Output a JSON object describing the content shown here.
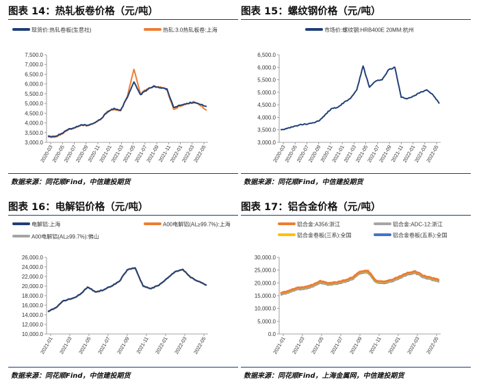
{
  "panels": [
    {
      "title": "图表 14：热轧板卷价格（元/吨）",
      "source": "数据来源：同花顺Find，中信建投期货",
      "chart_data": {
        "type": "line",
        "title": "热轧板卷价格（元/吨）",
        "x_ticks": [
          "2020-03",
          "2020-05",
          "2020-07",
          "2020-09",
          "2020-11",
          "2021-01",
          "2021-03",
          "2021-05",
          "2021-07",
          "2021-09",
          "2021-11",
          "2022-01",
          "2022-03",
          "2022-05"
        ],
        "ylim": [
          3000,
          7500
        ],
        "y_ticks": [
          "3,000.0",
          "3,500.0",
          "4,000.0",
          "4,500.0",
          "5,000.0",
          "5,500.0",
          "6,000.0",
          "6,500.0",
          "7,000.0",
          "7,500.0"
        ],
        "legend_position": "top",
        "series": [
          {
            "name": "现货价:热轧卷板(生意社)",
            "color": "#1f3f77",
            "values": [
              3320,
              3300,
              3450,
              3650,
              3750,
              3900,
              3880,
              4000,
              4200,
              4550,
              4750,
              4650,
              5300,
              6100,
              5450,
              5700,
              5900,
              5800,
              5750,
              4800,
              4900,
              5000,
              5050,
              4950,
              4850
            ]
          },
          {
            "name": "热轧:3.0热轧板卷:上海",
            "color": "#ed7d31",
            "values": [
              3280,
              3260,
              3420,
              3620,
              3730,
              3880,
              3860,
              3990,
              4180,
              4600,
              4700,
              4620,
              5350,
              6750,
              5500,
              5750,
              5850,
              5850,
              5700,
              4700,
              4850,
              4980,
              5100,
              4900,
              4650
            ]
          }
        ]
      }
    },
    {
      "title": "图表 15：螺纹钢价格（元/吨）",
      "source": "数据来源：同花顺Find，中信建投期货",
      "chart_data": {
        "type": "line",
        "title": "螺纹钢价格（元/吨）",
        "x_ticks": [
          "2020-03",
          "2020-05",
          "2020-07",
          "2020-09",
          "2020-11",
          "2021-01",
          "2021-03",
          "2021-05",
          "2021-07",
          "2021-09",
          "2021-11",
          "2022-01",
          "2022-03",
          "2022-05"
        ],
        "ylim": [
          3000,
          6500
        ],
        "y_ticks": [
          "3,000.0",
          "3,500.0",
          "4,000.0",
          "4,500.0",
          "5,000.0",
          "5,500.0",
          "6,000.0",
          "6,500.0"
        ],
        "legend_position": "top",
        "series": [
          {
            "name": "市场价:螺纹钢:HRB400E 20MM:杭州",
            "color": "#1f3f77",
            "values": [
              3500,
              3550,
              3620,
              3700,
              3720,
              3780,
              3850,
              4100,
              4350,
              4400,
              4600,
              4750,
              5100,
              6050,
              5200,
              5450,
              5500,
              5900,
              6000,
              4800,
              4750,
              4850,
              5000,
              5100,
              4900,
              4550
            ]
          }
        ]
      }
    },
    {
      "title": "图表 16：电解铝价格（元/吨）",
      "source": "数据来源：同花顺Find，中信建投期货",
      "chart_data": {
        "type": "line",
        "title": "电解铝价格（元/吨）",
        "x_ticks": [
          "2021-01",
          "2021-03",
          "2021-05",
          "2021-07",
          "2021-09",
          "2021-11",
          "2022-01",
          "2022-03",
          "2022-05"
        ],
        "ylim": [
          10000,
          26000
        ],
        "y_ticks": [
          "10,000.0",
          "12,000.0",
          "14,000.0",
          "16,000.0",
          "18,000.0",
          "20,000.0",
          "22,000.0",
          "24,000.0",
          "26,000.0"
        ],
        "legend_position": "top",
        "series": [
          {
            "name": "电解铝:上海",
            "color": "#1f3f77",
            "values": [
              14700,
              15500,
              17000,
              17400,
              18200,
              19800,
              18800,
              19200,
              20000,
              21000,
              23400,
              23800,
              20000,
              19500,
              20200,
              21600,
              23000,
              23500,
              21800,
              21000,
              20200
            ]
          },
          {
            "name": "A00电解铝(AL≥99.7%):上海",
            "color": "#ed7d31",
            "values": [
              14700,
              15500,
              17000,
              17400,
              18200,
              19800,
              18800,
              19200,
              20000,
              21000,
              23400,
              23800,
              20000,
              19500,
              20200,
              21600,
              23000,
              23500,
              21800,
              21000,
              20200
            ]
          },
          {
            "name": "A00电解铝(AL≥99.7%):佛山",
            "color": "#a5a5a5",
            "values": [
              14600,
              15400,
              16900,
              17300,
              18100,
              19700,
              18700,
              19100,
              19900,
              20900,
              23300,
              23700,
              19900,
              19400,
              20100,
              21500,
              22900,
              23400,
              21700,
              20900,
              20100
            ]
          }
        ]
      }
    },
    {
      "title": "图表 17：铝合金价格（元/吨）",
      "source": "数据来源：同花顺Find，上海金属网，中信建投期货",
      "chart_data": {
        "type": "line",
        "title": "铝合金价格（元/吨）",
        "x_ticks": [
          "2021-01",
          "2021-03",
          "2021-05",
          "2021-07",
          "2021-09",
          "2021-11",
          "2022-01",
          "2022-03",
          "2022-05"
        ],
        "ylim": [
          0,
          30000
        ],
        "y_ticks": [
          "0.0",
          "5,000.0",
          "10,000.0",
          "15,000.0",
          "20,000.0",
          "25,000.0",
          "30,000.0"
        ],
        "legend_position": "top",
        "series": [
          {
            "name": "铝合金:A356:浙江",
            "color": "#ed7d31",
            "values": [
              16000,
              16800,
              18000,
              18300,
              19200,
              20800,
              19800,
              20200,
              21000,
              22000,
              24400,
              24800,
              21000,
              20500,
              21200,
              22600,
              24000,
              24500,
              22800,
              22000,
              21200
            ]
          },
          {
            "name": "铝合金:ADC-12:浙江",
            "color": "#a5a5a5",
            "values": [
              15800,
              16600,
              17800,
              18100,
              19000,
              20600,
              19600,
              20000,
              20800,
              21800,
              24200,
              24600,
              20800,
              20300,
              21000,
              22400,
              23800,
              24300,
              22600,
              21800,
              21000
            ]
          },
          {
            "name": "铝合金卷板(三系):全国",
            "color": "#ffc000",
            "values": [
              15600,
              16400,
              17600,
              17900,
              18800,
              20400,
              19400,
              19800,
              20600,
              21600,
              24000,
              24400,
              20600,
              20100,
              20800,
              22200,
              23600,
              24100,
              22400,
              21600,
              20800
            ]
          },
          {
            "name": "铝合金卷板(五系):全国",
            "color": "#4472c4",
            "values": [
              15400,
              16200,
              17400,
              17700,
              18600,
              20200,
              19200,
              19600,
              20400,
              21400,
              23800,
              24200,
              20400,
              19900,
              20600,
              22000,
              23400,
              23900,
              22200,
              21400,
              20600
            ]
          }
        ]
      }
    }
  ]
}
